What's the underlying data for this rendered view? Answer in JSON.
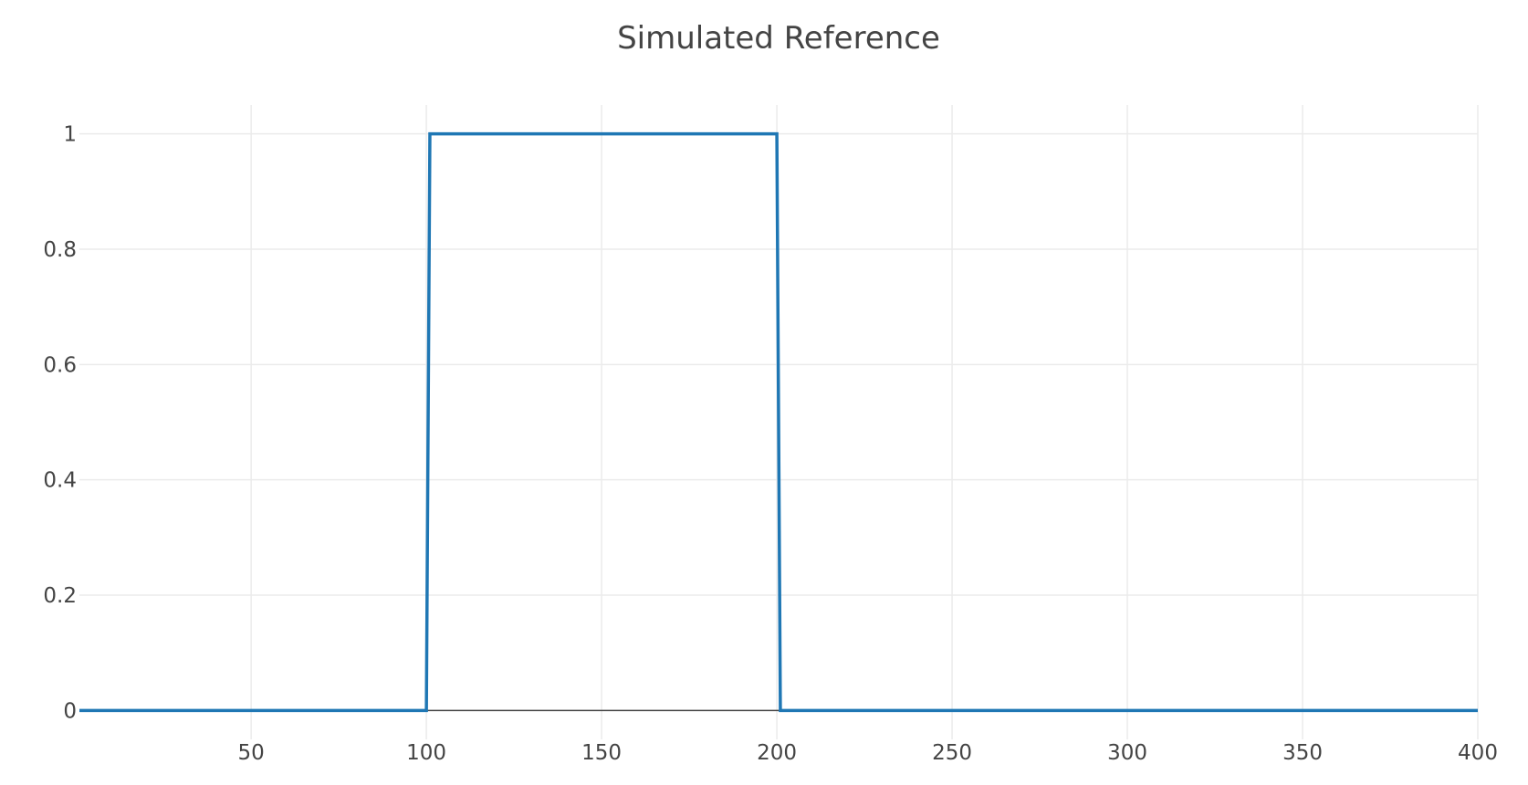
{
  "chart_data": {
    "type": "line",
    "title": "Simulated Reference",
    "xlabel": "",
    "ylabel": "",
    "xlim": [
      1,
      400
    ],
    "ylim": [
      -0.05,
      1.05
    ],
    "x_ticks": [
      50,
      100,
      150,
      200,
      250,
      300,
      350,
      400
    ],
    "y_ticks": [
      0,
      0.2,
      0.4,
      0.6,
      0.8,
      1
    ],
    "y_tick_labels": [
      "0",
      "0.2",
      "0.4",
      "0.6",
      "0.8",
      "1"
    ],
    "grid": true,
    "legend": "none",
    "series": [
      {
        "color": "#1f77b4",
        "x": [
          1,
          100,
          101,
          200,
          201,
          400
        ],
        "y": [
          0,
          0,
          1,
          1,
          0,
          0
        ]
      }
    ]
  }
}
